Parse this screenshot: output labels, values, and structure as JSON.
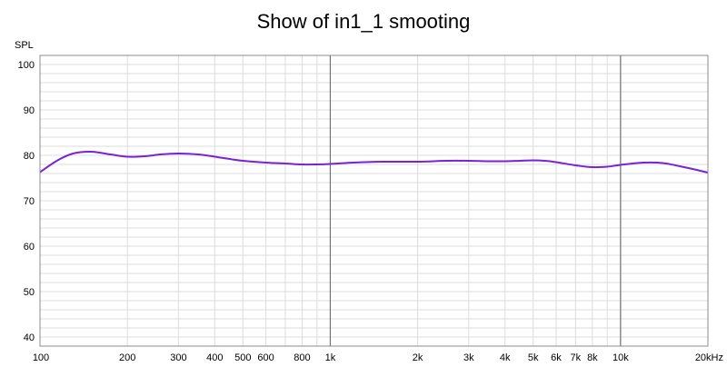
{
  "chart_data": {
    "type": "line",
    "title": "Show of in1_1 smooting",
    "ylabel": "SPL",
    "xlabel": "",
    "x_scale": "log",
    "xlim": [
      100,
      20000
    ],
    "ylim": [
      38,
      102
    ],
    "grid": true,
    "colors": {
      "series": "#7a22d6",
      "grid_minor": "#dcdcdc",
      "grid_major": "#6e6e6e",
      "frame": "#8c8c8c"
    },
    "y_ticks": [
      {
        "value": 100,
        "label": "100"
      },
      {
        "value": 90,
        "label": "90"
      },
      {
        "value": 80,
        "label": "80"
      },
      {
        "value": 70,
        "label": "70"
      },
      {
        "value": 60,
        "label": "60"
      },
      {
        "value": 50,
        "label": "50"
      },
      {
        "value": 40,
        "label": "40"
      }
    ],
    "x_ticks": [
      {
        "value": 100,
        "label": "100"
      },
      {
        "value": 200,
        "label": "200"
      },
      {
        "value": 300,
        "label": "300"
      },
      {
        "value": 400,
        "label": "400"
      },
      {
        "value": 500,
        "label": "500"
      },
      {
        "value": 600,
        "label": "600"
      },
      {
        "value": 800,
        "label": "800"
      },
      {
        "value": 1000,
        "label": "1k"
      },
      {
        "value": 2000,
        "label": "2k"
      },
      {
        "value": 3000,
        "label": "3k"
      },
      {
        "value": 4000,
        "label": "4k"
      },
      {
        "value": 5000,
        "label": "5k"
      },
      {
        "value": 6000,
        "label": "6k"
      },
      {
        "value": 7000,
        "label": "7k"
      },
      {
        "value": 8000,
        "label": "8k"
      },
      {
        "value": 10000,
        "label": "10k"
      },
      {
        "value": 20000,
        "label": "20kHz"
      }
    ],
    "series": [
      {
        "x": [
          100,
          115,
          130,
          150,
          175,
          200,
          230,
          260,
          300,
          350,
          400,
          450,
          500,
          600,
          700,
          800,
          900,
          1000,
          1200,
          1500,
          2000,
          2500,
          3000,
          3500,
          4000,
          4500,
          5000,
          5500,
          6000,
          7000,
          8000,
          9000,
          10000,
          12000,
          14000,
          16000,
          18000,
          20000
        ],
        "values": [
          76.3,
          78.9,
          80.4,
          80.8,
          80.2,
          79.7,
          79.8,
          80.2,
          80.4,
          80.2,
          79.7,
          79.2,
          78.8,
          78.4,
          78.2,
          78.0,
          78.0,
          78.1,
          78.4,
          78.6,
          78.6,
          78.8,
          78.8,
          78.7,
          78.7,
          78.8,
          78.9,
          78.8,
          78.5,
          77.8,
          77.4,
          77.5,
          77.9,
          78.4,
          78.3,
          77.6,
          76.9,
          76.2
        ]
      }
    ]
  }
}
